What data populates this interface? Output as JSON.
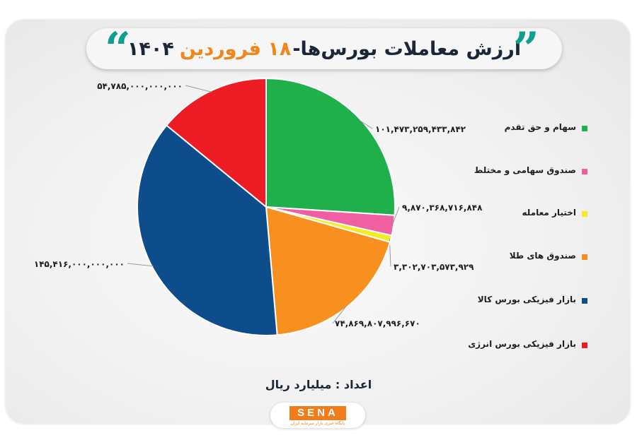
{
  "header": {
    "title": "ارزش معاملات بورس‌ها-",
    "date": "۱۸ فروردین",
    "year": "۱۴۰۴"
  },
  "footer": {
    "unit_label": "اعداد : میلیارد ریال",
    "logo_text": "SENA",
    "logo_subtitle": "پایگاه خبری بازار سرمایه ایران"
  },
  "colors": {
    "green": "#1fb04b",
    "pink": "#ef5fa1",
    "yellow": "#f6eb22",
    "orange": "#f7901e",
    "blue": "#0e4d8c",
    "red": "#ed1c24",
    "accent_teal": "#0e9f8f",
    "accent_orange": "#f0861c"
  },
  "chart_data": {
    "type": "pie",
    "title": "ارزش معاملات بورس‌ها- ۱۸ فروردین ۱۴۰۴",
    "legend_position": "right",
    "slices": [
      {
        "name": "سهام و حق تقدم",
        "value": 101473259433842,
        "label": "۱۰۱,۴۷۳,۲۵۹,۴۳۳,۸۴۲",
        "color": "#1fb04b"
      },
      {
        "name": "صندوق سهامی و مختلط",
        "value": 9870368716848,
        "label": "۹,۸۷۰,۳۶۸,۷۱۶,۸۴۸",
        "color": "#ef5fa1"
      },
      {
        "name": "اختیار معامله",
        "value": 3302703573929,
        "label": "۳,۳۰۲,۷۰۳,۵۷۳,۹۲۹",
        "color": "#f6eb22"
      },
      {
        "name": "صندوق های طلا",
        "value": 74869807996670,
        "label": "۷۴,۸۶۹,۸۰۷,۹۹۶,۶۷۰",
        "color": "#f7901e"
      },
      {
        "name": "بازار فیزیکی بورس کالا",
        "value": 145416000000000,
        "label": "۱۴۵,۴۱۶,۰۰۰,۰۰۰,۰۰۰",
        "color": "#0e4d8c"
      },
      {
        "name": "بازار فیزیکی بورس انرژی",
        "value": 54785000000000,
        "label": "۵۴,۷۸۵,۰۰۰,۰۰۰,۰۰۰",
        "color": "#ed1c24"
      }
    ]
  }
}
